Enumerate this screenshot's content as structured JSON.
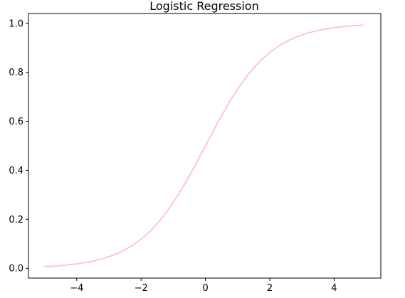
{
  "chart_data": {
    "type": "line",
    "title": "Logistic Regression",
    "xlabel": "",
    "ylabel": "",
    "xlim": [
      -5.5,
      5.45
    ],
    "ylim": [
      -0.04,
      1.04
    ],
    "grid": false,
    "x_ticks": [
      -4,
      -2,
      0,
      2,
      4
    ],
    "x_tick_labels": [
      "−4",
      "−2",
      "0",
      "2",
      "4"
    ],
    "y_ticks": [
      0.0,
      0.2,
      0.4,
      0.6,
      0.8,
      1.0
    ],
    "y_tick_labels": [
      "0.0",
      "0.2",
      "0.4",
      "0.6",
      "0.8",
      "1.0"
    ],
    "series": [
      {
        "color": "#ffc0cb",
        "function": "sigmoid",
        "x": [
          -5.0,
          -4.5,
          -4.0,
          -3.5,
          -3.0,
          -2.5,
          -2.0,
          -1.5,
          -1.0,
          -0.5,
          0.0,
          0.5,
          1.0,
          1.5,
          2.0,
          2.5,
          3.0,
          3.5,
          4.0,
          4.5,
          4.9
        ],
        "y": [
          0.007,
          0.011,
          0.018,
          0.029,
          0.047,
          0.076,
          0.119,
          0.182,
          0.269,
          0.378,
          0.5,
          0.622,
          0.731,
          0.818,
          0.881,
          0.924,
          0.953,
          0.971,
          0.982,
          0.989,
          0.993
        ]
      }
    ]
  }
}
